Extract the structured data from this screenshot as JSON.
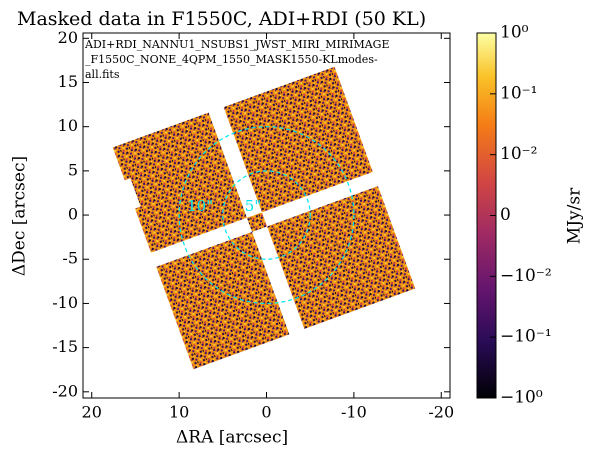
{
  "chart_data": {
    "type": "image",
    "title": "Masked data in F1550C, ADI+RDI (50 KL)",
    "xlabel": "ΔRA [arcsec]",
    "ylabel": "ΔDec [arcsec]",
    "annotation": [
      "ADI+RDI_NANNU1_NSUBS1_JWST_MIRI_MIRIMAGE",
      "_F1550C_NONE_4QPM_1550_MASK1550-KLmodes-",
      "all.fits"
    ],
    "xlim": [
      21,
      -21
    ],
    "ylim": [
      -20.7,
      20.6
    ],
    "xticks": [
      20,
      10,
      0,
      -10,
      -20
    ],
    "yticks": [
      -20,
      -15,
      -10,
      -5,
      0,
      5,
      10,
      15,
      20
    ],
    "circles": [
      {
        "radius": 10,
        "label": "10\""
      },
      {
        "radius": 5,
        "label": "5\""
      }
    ],
    "circle_color": "#00e5ee",
    "colorbar": {
      "label": "MJy/sr",
      "scale": "symlog",
      "linthresh": 0.01,
      "clim": [
        -1,
        1
      ],
      "ticks": [
        {
          "value": 1,
          "label": "10⁰"
        },
        {
          "value": 0.1,
          "label": "10⁻¹"
        },
        {
          "value": 0.01,
          "label": "10⁻²"
        },
        0,
        {
          "value": -0.01,
          "label": "−10⁻²"
        },
        {
          "value": -0.1,
          "label": "−10⁻¹"
        },
        {
          "value": -1,
          "label": "−10⁰"
        }
      ]
    }
  }
}
